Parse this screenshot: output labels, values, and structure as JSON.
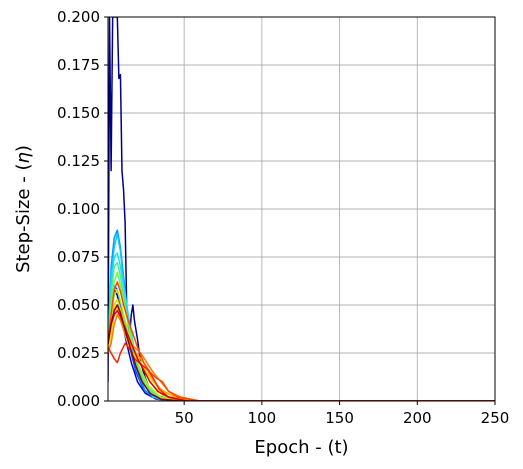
{
  "chart_data": {
    "type": "line",
    "xlabel": "Epoch - (t)",
    "ylabel_prefix": "Step-Size - (",
    "ylabel_symbol": "η",
    "ylabel_suffix": ")",
    "xlim": [
      1,
      250
    ],
    "ylim": [
      0,
      0.2
    ],
    "xticks": [
      50,
      100,
      150,
      200,
      250
    ],
    "yticks": [
      0.0,
      0.025,
      0.05,
      0.075,
      0.1,
      0.125,
      0.15,
      0.175,
      0.2
    ],
    "xtick_labels": [
      "50",
      "100",
      "150",
      "200",
      "250"
    ],
    "ytick_labels": [
      "0.000",
      "0.025",
      "0.050",
      "0.075",
      "0.100",
      "0.125",
      "0.150",
      "0.175",
      "0.200"
    ],
    "grid": true,
    "series": [
      {
        "color": "#00008b",
        "points": [
          [
            1,
            0.01
          ],
          [
            2,
            0.2
          ],
          [
            3,
            0.12
          ],
          [
            4,
            0.2
          ],
          [
            5,
            0.2
          ],
          [
            6,
            0.2
          ],
          [
            7,
            0.2
          ],
          [
            8,
            0.168
          ],
          [
            9,
            0.17
          ],
          [
            10,
            0.12
          ],
          [
            11,
            0.11
          ],
          [
            12,
            0.093
          ],
          [
            13,
            0.05
          ],
          [
            14,
            0.04
          ],
          [
            15,
            0.035
          ],
          [
            16,
            0.045
          ],
          [
            17,
            0.05
          ],
          [
            18,
            0.042
          ],
          [
            20,
            0.032
          ],
          [
            22,
            0.02
          ],
          [
            25,
            0.012
          ],
          [
            28,
            0.006
          ],
          [
            32,
            0.003
          ],
          [
            40,
            0.001
          ],
          [
            50,
            0.0
          ],
          [
            250,
            0.0
          ]
        ]
      },
      {
        "color": "#0000cd",
        "points": [
          [
            1,
            0.03
          ],
          [
            3,
            0.05
          ],
          [
            5,
            0.058
          ],
          [
            7,
            0.055
          ],
          [
            9,
            0.045
          ],
          [
            11,
            0.038
          ],
          [
            13,
            0.03
          ],
          [
            16,
            0.02
          ],
          [
            20,
            0.01
          ],
          [
            25,
            0.004
          ],
          [
            32,
            0.001
          ],
          [
            45,
            0.0
          ],
          [
            250,
            0.0
          ]
        ]
      },
      {
        "color": "#0055ff",
        "points": [
          [
            1,
            0.028
          ],
          [
            3,
            0.05
          ],
          [
            5,
            0.06
          ],
          [
            7,
            0.058
          ],
          [
            9,
            0.05
          ],
          [
            12,
            0.04
          ],
          [
            15,
            0.028
          ],
          [
            19,
            0.015
          ],
          [
            24,
            0.006
          ],
          [
            30,
            0.002
          ],
          [
            42,
            0.0
          ],
          [
            250,
            0.0
          ]
        ]
      },
      {
        "color": "#0099ff",
        "points": [
          [
            1,
            0.03
          ],
          [
            3,
            0.07
          ],
          [
            5,
            0.085
          ],
          [
            7,
            0.089
          ],
          [
            9,
            0.08
          ],
          [
            11,
            0.065
          ],
          [
            13,
            0.05
          ],
          [
            16,
            0.03
          ],
          [
            20,
            0.015
          ],
          [
            25,
            0.005
          ],
          [
            33,
            0.001
          ],
          [
            45,
            0.0
          ],
          [
            250,
            0.0
          ]
        ]
      },
      {
        "color": "#00ccff",
        "points": [
          [
            1,
            0.03
          ],
          [
            3,
            0.065
          ],
          [
            5,
            0.08
          ],
          [
            7,
            0.087
          ],
          [
            9,
            0.078
          ],
          [
            11,
            0.062
          ],
          [
            14,
            0.045
          ],
          [
            18,
            0.025
          ],
          [
            23,
            0.01
          ],
          [
            30,
            0.002
          ],
          [
            42,
            0.0
          ],
          [
            250,
            0.0
          ]
        ]
      },
      {
        "color": "#22e0e0",
        "points": [
          [
            1,
            0.028
          ],
          [
            3,
            0.06
          ],
          [
            5,
            0.075
          ],
          [
            7,
            0.077
          ],
          [
            9,
            0.07
          ],
          [
            12,
            0.055
          ],
          [
            15,
            0.04
          ],
          [
            19,
            0.022
          ],
          [
            24,
            0.009
          ],
          [
            31,
            0.002
          ],
          [
            44,
            0.0
          ],
          [
            250,
            0.0
          ]
        ]
      },
      {
        "color": "#44ee99",
        "points": [
          [
            1,
            0.03
          ],
          [
            3,
            0.055
          ],
          [
            5,
            0.07
          ],
          [
            7,
            0.072
          ],
          [
            9,
            0.065
          ],
          [
            12,
            0.05
          ],
          [
            15,
            0.036
          ],
          [
            19,
            0.02
          ],
          [
            25,
            0.008
          ],
          [
            33,
            0.002
          ],
          [
            46,
            0.0
          ],
          [
            250,
            0.0
          ]
        ]
      },
      {
        "color": "#77f055",
        "points": [
          [
            1,
            0.028
          ],
          [
            3,
            0.05
          ],
          [
            5,
            0.062
          ],
          [
            7,
            0.067
          ],
          [
            9,
            0.06
          ],
          [
            12,
            0.048
          ],
          [
            16,
            0.033
          ],
          [
            20,
            0.02
          ],
          [
            26,
            0.008
          ],
          [
            34,
            0.002
          ],
          [
            48,
            0.0
          ],
          [
            250,
            0.0
          ]
        ]
      },
      {
        "color": "#aaf022",
        "points": [
          [
            1,
            0.03
          ],
          [
            3,
            0.045
          ],
          [
            5,
            0.055
          ],
          [
            7,
            0.058
          ],
          [
            9,
            0.052
          ],
          [
            12,
            0.042
          ],
          [
            16,
            0.03
          ],
          [
            21,
            0.018
          ],
          [
            27,
            0.008
          ],
          [
            35,
            0.002
          ],
          [
            50,
            0.0
          ],
          [
            250,
            0.0
          ]
        ]
      },
      {
        "color": "#dddd00",
        "points": [
          [
            1,
            0.03
          ],
          [
            3,
            0.04
          ],
          [
            5,
            0.05
          ],
          [
            7,
            0.053
          ],
          [
            10,
            0.045
          ],
          [
            13,
            0.035
          ],
          [
            17,
            0.028
          ],
          [
            22,
            0.02
          ],
          [
            28,
            0.01
          ],
          [
            36,
            0.003
          ],
          [
            52,
            0.0
          ],
          [
            250,
            0.0
          ]
        ]
      },
      {
        "color": "#ffcc00",
        "points": [
          [
            1,
            0.025
          ],
          [
            3,
            0.035
          ],
          [
            5,
            0.045
          ],
          [
            7,
            0.048
          ],
          [
            10,
            0.04
          ],
          [
            13,
            0.032
          ],
          [
            16,
            0.025
          ],
          [
            20,
            0.022
          ],
          [
            25,
            0.016
          ],
          [
            30,
            0.01
          ],
          [
            38,
            0.004
          ],
          [
            55,
            0.0
          ],
          [
            250,
            0.0
          ]
        ]
      },
      {
        "color": "#ffa500",
        "points": [
          [
            1,
            0.03
          ],
          [
            3,
            0.04
          ],
          [
            5,
            0.048
          ],
          [
            7,
            0.05
          ],
          [
            9,
            0.045
          ],
          [
            12,
            0.038
          ],
          [
            15,
            0.03
          ],
          [
            19,
            0.025
          ],
          [
            24,
            0.02
          ],
          [
            29,
            0.012
          ],
          [
            35,
            0.006
          ],
          [
            44,
            0.002
          ],
          [
            58,
            0.0
          ],
          [
            250,
            0.0
          ]
        ]
      },
      {
        "color": "#ff7700",
        "points": [
          [
            1,
            0.025
          ],
          [
            3,
            0.03
          ],
          [
            5,
            0.04
          ],
          [
            7,
            0.045
          ],
          [
            9,
            0.042
          ],
          [
            12,
            0.035
          ],
          [
            15,
            0.03
          ],
          [
            18,
            0.028
          ],
          [
            22,
            0.025
          ],
          [
            26,
            0.02
          ],
          [
            30,
            0.015
          ],
          [
            35,
            0.01
          ],
          [
            40,
            0.005
          ],
          [
            48,
            0.002
          ],
          [
            60,
            0.0
          ],
          [
            250,
            0.0
          ]
        ]
      },
      {
        "color": "#ff4500",
        "points": [
          [
            1,
            0.03
          ],
          [
            3,
            0.045
          ],
          [
            5,
            0.058
          ],
          [
            7,
            0.062
          ],
          [
            9,
            0.057
          ],
          [
            11,
            0.05
          ],
          [
            14,
            0.042
          ],
          [
            17,
            0.035
          ],
          [
            20,
            0.028
          ],
          [
            24,
            0.02
          ],
          [
            28,
            0.015
          ],
          [
            32,
            0.012
          ],
          [
            36,
            0.01
          ],
          [
            40,
            0.005
          ],
          [
            46,
            0.002
          ],
          [
            60,
            0.0
          ],
          [
            250,
            0.0
          ]
        ]
      },
      {
        "color": "#ff2200",
        "points": [
          [
            1,
            0.028
          ],
          [
            3,
            0.025
          ],
          [
            5,
            0.022
          ],
          [
            7,
            0.02
          ],
          [
            9,
            0.025
          ],
          [
            12,
            0.03
          ],
          [
            15,
            0.027
          ],
          [
            18,
            0.022
          ],
          [
            21,
            0.02
          ],
          [
            24,
            0.018
          ],
          [
            27,
            0.016
          ],
          [
            30,
            0.012
          ],
          [
            34,
            0.006
          ],
          [
            40,
            0.002
          ],
          [
            52,
            0.0
          ],
          [
            250,
            0.0
          ]
        ]
      },
      {
        "color": "#dd0000",
        "points": [
          [
            1,
            0.03
          ],
          [
            3,
            0.04
          ],
          [
            5,
            0.045
          ],
          [
            7,
            0.047
          ],
          [
            9,
            0.044
          ],
          [
            11,
            0.04
          ],
          [
            14,
            0.034
          ],
          [
            17,
            0.028
          ],
          [
            20,
            0.022
          ],
          [
            24,
            0.016
          ],
          [
            28,
            0.01
          ],
          [
            33,
            0.005
          ],
          [
            40,
            0.002
          ],
          [
            52,
            0.0
          ],
          [
            250,
            0.0
          ]
        ]
      },
      {
        "color": "#8b0000",
        "points": [
          [
            1,
            0.03
          ],
          [
            3,
            0.04
          ],
          [
            5,
            0.047
          ],
          [
            7,
            0.05
          ],
          [
            9,
            0.046
          ],
          [
            11,
            0.04
          ],
          [
            13,
            0.034
          ],
          [
            16,
            0.026
          ],
          [
            19,
            0.018
          ],
          [
            23,
            0.01
          ],
          [
            28,
            0.004
          ],
          [
            35,
            0.001
          ],
          [
            48,
            0.0
          ],
          [
            250,
            0.0
          ]
        ]
      }
    ]
  }
}
